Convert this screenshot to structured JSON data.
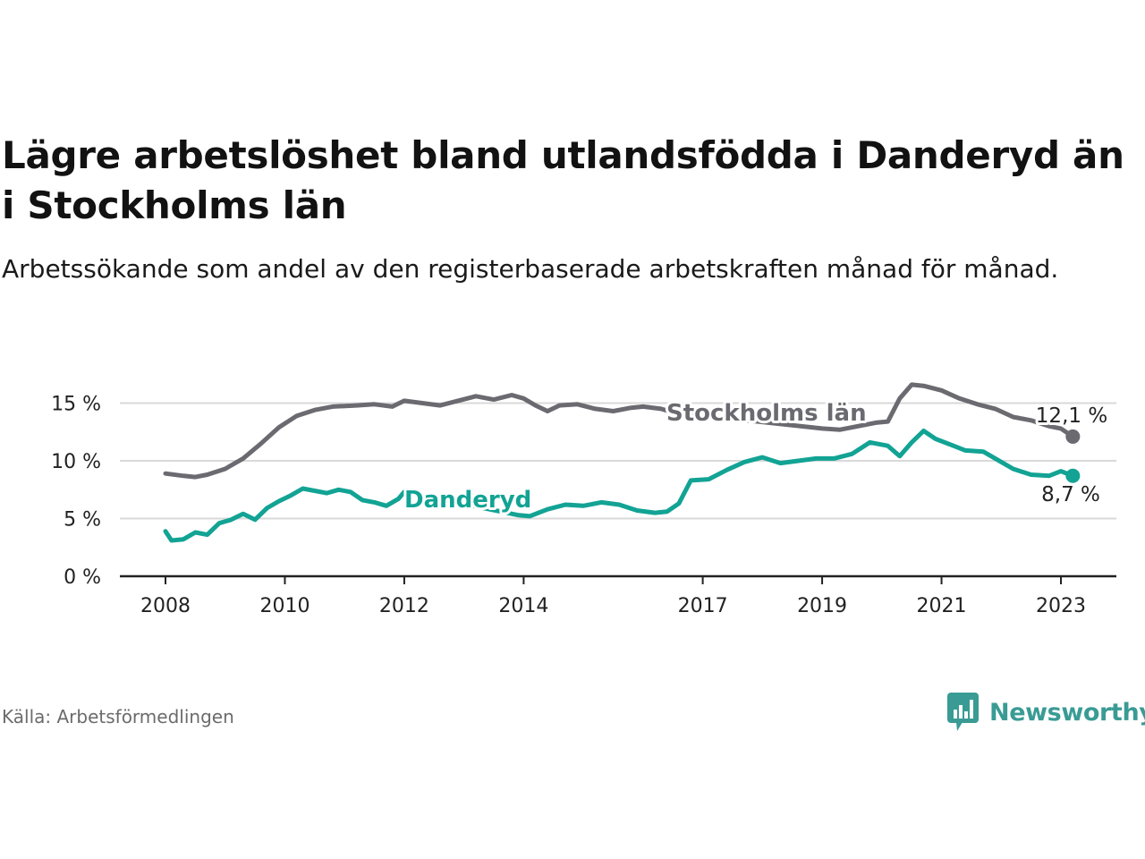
{
  "title": "Lägre arbetslöshet bland utlandsfödda i Danderyd än i Stockholms län",
  "subtitle": "Arbetssökande som andel av den registerbaserade arbetskraften månad för månad.",
  "source": "Källa: Arbetsförmedlingen",
  "brand": {
    "name": "Newsworthy",
    "color": "#3a9b95",
    "icon": "bar-chart-speech-bubble-icon"
  },
  "colors": {
    "stockholm": "#6b6a70",
    "danderyd": "#12a394",
    "grid": "#d9d9d9",
    "axis": "#222222"
  },
  "chart_data": {
    "type": "line",
    "title": "Lägre arbetslöshet bland utlandsfödda i Danderyd än i Stockholms län",
    "xlabel": "",
    "ylabel": "",
    "ylim": [
      0,
      17
    ],
    "xlim": [
      2007.4,
      2024.0
    ],
    "y_ticks": [
      0,
      5,
      10,
      15
    ],
    "y_tick_labels": [
      "0 %",
      "5 %",
      "10 %",
      "15 %"
    ],
    "x_ticks": [
      2008,
      2010,
      2012,
      2014,
      2017,
      2019,
      2021,
      2023
    ],
    "x_tick_labels": [
      "2008",
      "2010",
      "2012",
      "2014",
      "2017",
      "2019",
      "2021",
      "2023"
    ],
    "grid": true,
    "legend": "inline labels on lines",
    "series": [
      {
        "name": "Stockholms län",
        "end_label": "12,1 %",
        "points": [
          [
            2008.0,
            8.9
          ],
          [
            2008.3,
            8.7
          ],
          [
            2008.5,
            8.6
          ],
          [
            2008.7,
            8.8
          ],
          [
            2009.0,
            9.3
          ],
          [
            2009.3,
            10.2
          ],
          [
            2009.6,
            11.5
          ],
          [
            2009.9,
            12.9
          ],
          [
            2010.2,
            13.9
          ],
          [
            2010.5,
            14.4
          ],
          [
            2010.8,
            14.7
          ],
          [
            2011.2,
            14.8
          ],
          [
            2011.5,
            14.9
          ],
          [
            2011.8,
            14.7
          ],
          [
            2012.0,
            15.2
          ],
          [
            2012.3,
            15.0
          ],
          [
            2012.6,
            14.8
          ],
          [
            2012.9,
            15.2
          ],
          [
            2013.2,
            15.6
          ],
          [
            2013.5,
            15.3
          ],
          [
            2013.8,
            15.7
          ],
          [
            2014.0,
            15.4
          ],
          [
            2014.2,
            14.8
          ],
          [
            2014.4,
            14.3
          ],
          [
            2014.6,
            14.8
          ],
          [
            2014.9,
            14.9
          ],
          [
            2015.2,
            14.5
          ],
          [
            2015.5,
            14.3
          ],
          [
            2015.8,
            14.6
          ],
          [
            2016.0,
            14.7
          ],
          [
            2016.3,
            14.5
          ],
          [
            2016.5,
            14.2
          ],
          [
            2019.0,
            12.8
          ],
          [
            2019.3,
            12.7
          ],
          [
            2019.6,
            13.0
          ],
          [
            2019.9,
            13.3
          ],
          [
            2020.1,
            13.4
          ],
          [
            2020.3,
            15.4
          ],
          [
            2020.5,
            16.6
          ],
          [
            2020.7,
            16.5
          ],
          [
            2021.0,
            16.1
          ],
          [
            2021.3,
            15.4
          ],
          [
            2021.6,
            14.9
          ],
          [
            2021.9,
            14.5
          ],
          [
            2022.2,
            13.8
          ],
          [
            2022.5,
            13.5
          ],
          [
            2022.8,
            13.0
          ],
          [
            2023.0,
            12.8
          ],
          [
            2023.2,
            12.1
          ]
        ]
      },
      {
        "name": "Danderyd",
        "end_label": "8,7 %",
        "points": [
          [
            2008.0,
            3.9
          ],
          [
            2008.1,
            3.1
          ],
          [
            2008.3,
            3.2
          ],
          [
            2008.5,
            3.8
          ],
          [
            2008.7,
            3.6
          ],
          [
            2008.9,
            4.6
          ],
          [
            2009.1,
            4.9
          ],
          [
            2009.3,
            5.4
          ],
          [
            2009.5,
            4.9
          ],
          [
            2009.7,
            5.9
          ],
          [
            2009.9,
            6.5
          ],
          [
            2010.1,
            7.0
          ],
          [
            2010.3,
            7.6
          ],
          [
            2010.5,
            7.4
          ],
          [
            2010.7,
            7.2
          ],
          [
            2010.9,
            7.5
          ],
          [
            2011.1,
            7.3
          ],
          [
            2011.3,
            6.6
          ],
          [
            2011.5,
            6.4
          ],
          [
            2011.7,
            6.1
          ],
          [
            2011.9,
            6.7
          ],
          [
            2012.0,
            7.3
          ],
          [
            2013.9,
            5.3
          ],
          [
            2014.1,
            5.2
          ],
          [
            2014.4,
            5.8
          ],
          [
            2014.7,
            6.2
          ],
          [
            2015.0,
            6.1
          ],
          [
            2015.3,
            6.4
          ],
          [
            2015.6,
            6.2
          ],
          [
            2015.9,
            5.7
          ],
          [
            2016.2,
            5.5
          ],
          [
            2016.4,
            5.6
          ],
          [
            2016.6,
            6.3
          ],
          [
            2016.8,
            8.3
          ],
          [
            2017.1,
            8.4
          ],
          [
            2017.4,
            9.2
          ],
          [
            2017.7,
            9.9
          ],
          [
            2018.0,
            10.3
          ],
          [
            2018.3,
            9.8
          ],
          [
            2018.6,
            10.0
          ],
          [
            2018.9,
            10.2
          ],
          [
            2019.2,
            10.2
          ],
          [
            2019.5,
            10.6
          ],
          [
            2019.8,
            11.6
          ],
          [
            2020.1,
            11.3
          ],
          [
            2020.3,
            10.4
          ],
          [
            2020.5,
            11.6
          ],
          [
            2020.7,
            12.6
          ],
          [
            2020.9,
            11.9
          ],
          [
            2021.2,
            11.3
          ],
          [
            2021.4,
            10.9
          ],
          [
            2021.7,
            10.8
          ],
          [
            2022.0,
            9.9
          ],
          [
            2022.2,
            9.3
          ],
          [
            2022.5,
            8.8
          ],
          [
            2022.8,
            8.7
          ],
          [
            2023.0,
            9.1
          ],
          [
            2023.2,
            8.7
          ]
        ]
      }
    ]
  }
}
